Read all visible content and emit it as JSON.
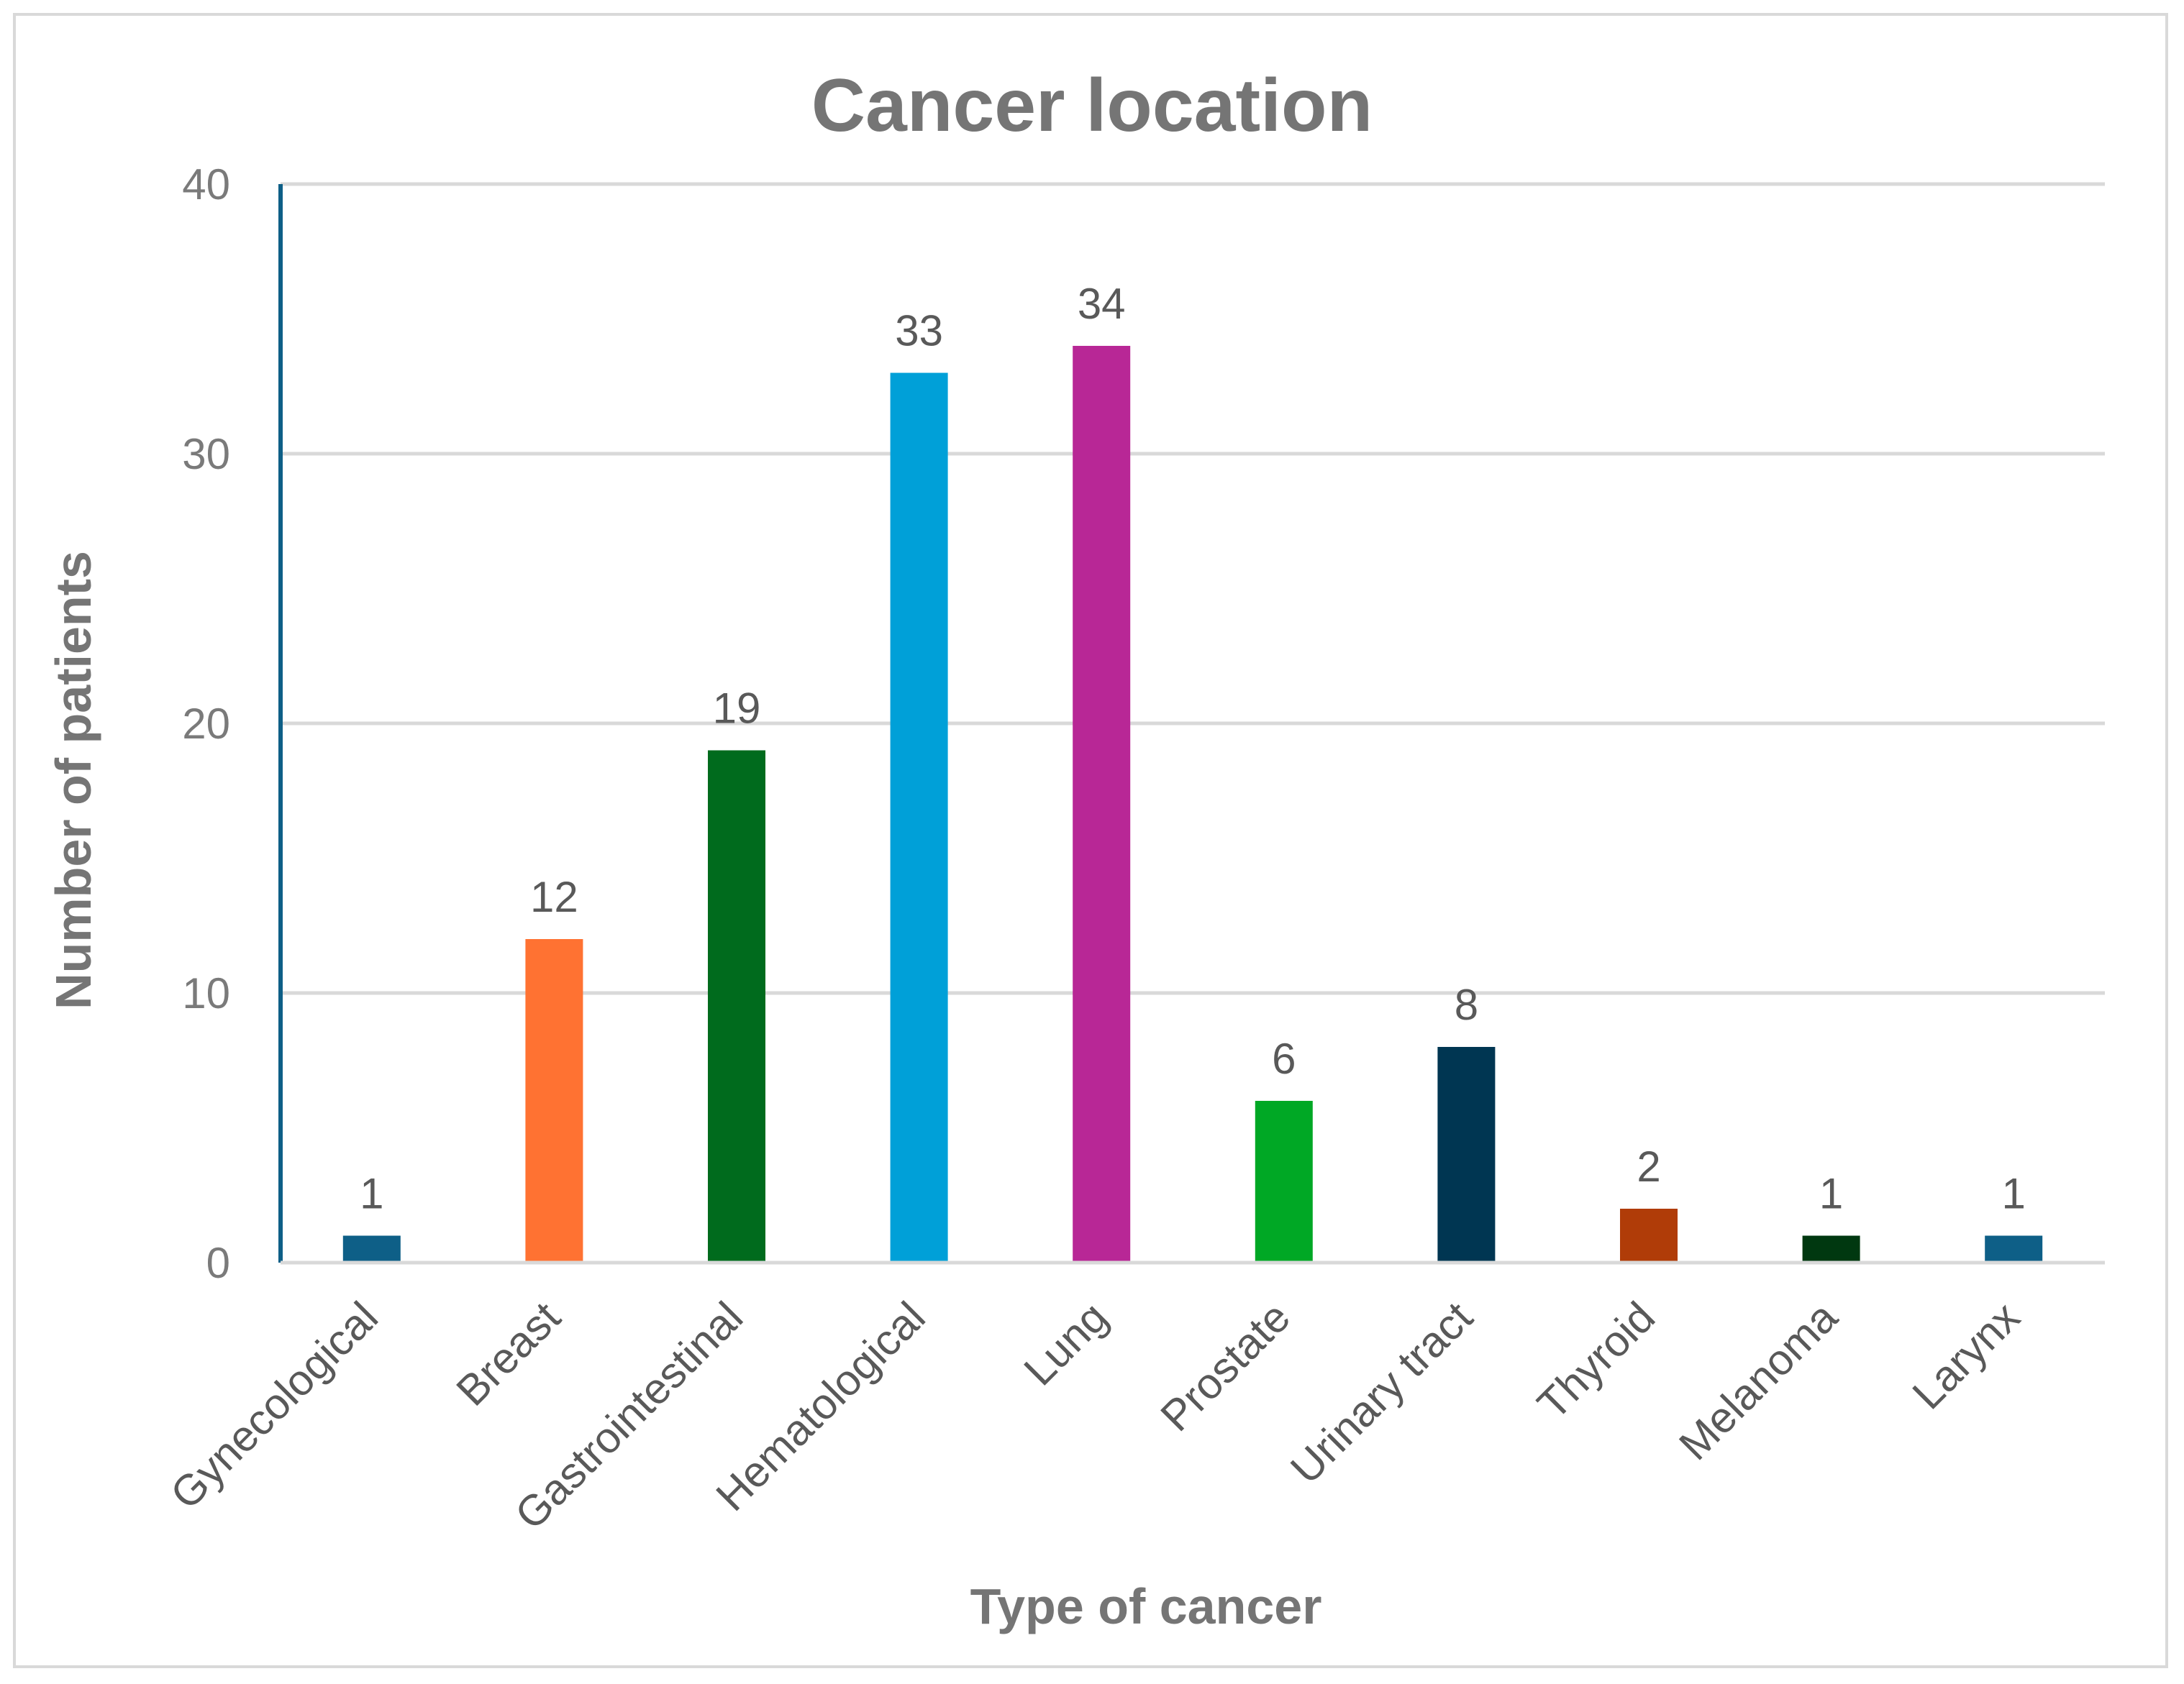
{
  "chart_data": {
    "type": "bar",
    "title": "Cancer location",
    "xlabel": "Type of cancer",
    "ylabel": "Number of patients",
    "ylim": [
      0,
      40
    ],
    "yticks": [
      0,
      10,
      20,
      30,
      40
    ],
    "grid": true,
    "legend": "none",
    "categories": [
      "Gynecological",
      "Breast",
      "Gastrointestinal",
      "Hematological",
      "Lung",
      "Prostate",
      "Urinary tract",
      "Thyroid",
      "Melanoma",
      "Larynx"
    ],
    "values": [
      1,
      12,
      19,
      33,
      34,
      6,
      8,
      2,
      1,
      1
    ],
    "colors": [
      "#0e5f87",
      "#ff7232",
      "#006b1d",
      "#00a0d8",
      "#b82796",
      "#00a825",
      "#003652",
      "#b03c08",
      "#003810",
      "#0e5f87"
    ]
  },
  "style": {
    "gridline_color": "#d9d9d9",
    "axis_line_color": "#0e5f87",
    "frame_color": "#d9d9d9"
  }
}
